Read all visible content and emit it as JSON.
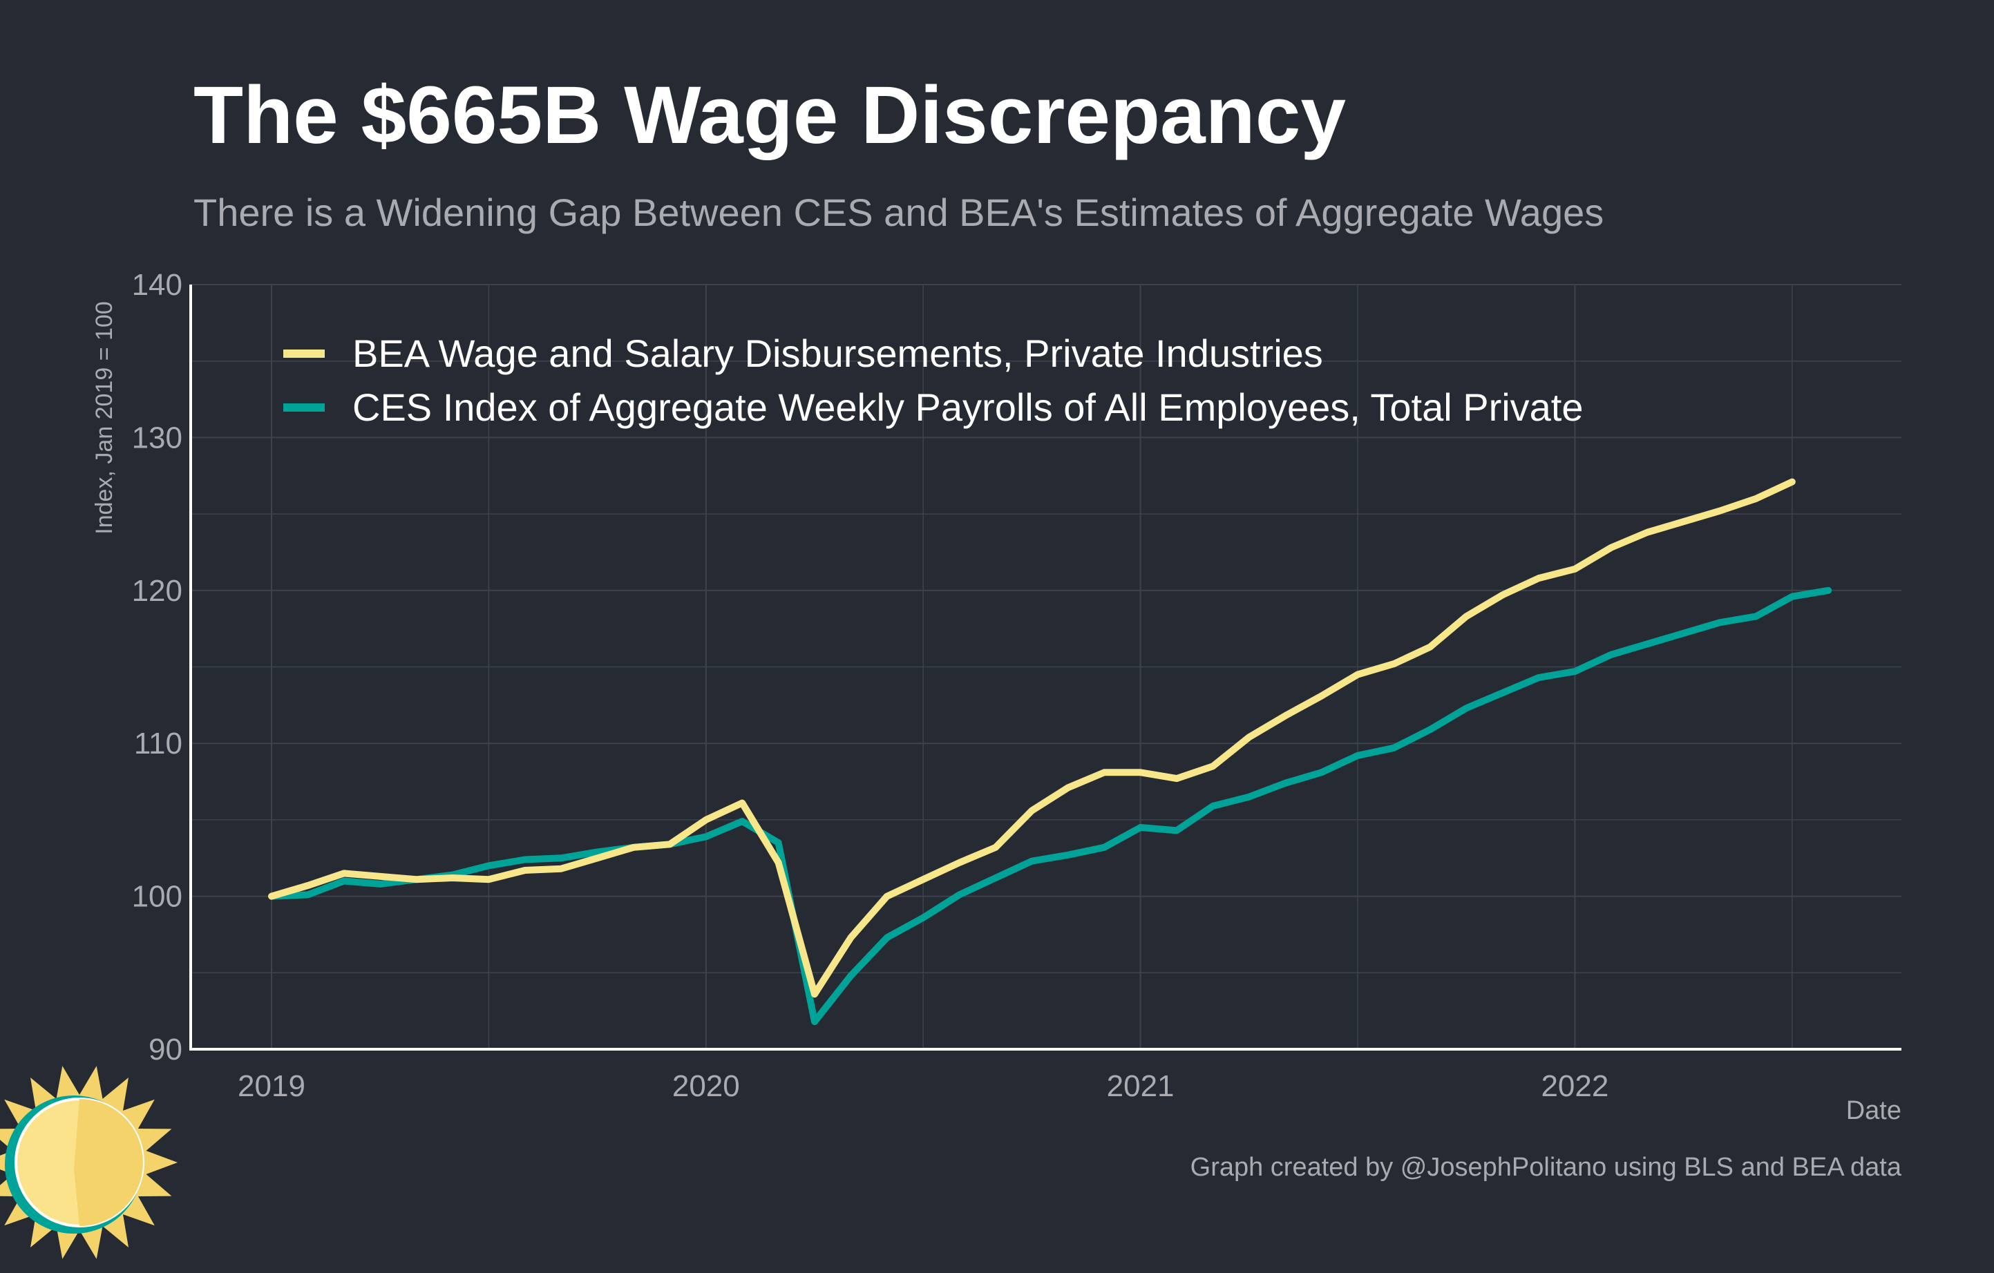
{
  "colors": {
    "background": "#252a33",
    "grid": "#3d424b",
    "axis": "#ffffff",
    "title": "#ffffff",
    "subtitle": "#a9abb0",
    "tick_label": "#a9abb0",
    "bea": "#f7e68a",
    "ces": "#00a398",
    "sun_body": "#fbe38c",
    "sun_shadow": "#f3d36a",
    "sun_ring": "#00a398"
  },
  "branding": {
    "logo_icon": "sun-icon"
  },
  "chart_data": {
    "type": "line",
    "title": "The $665B Wage Discrepancy",
    "subtitle": "There is a Widening Gap Between CES and BEA's Estimates of Aggregate Wages",
    "xlabel": "Date",
    "ylabel": "Index, Jan 2019 = 100",
    "caption": "Graph created by @JosephPolitano using BLS and BEA data",
    "x_tick_labels": [
      "2019",
      "2020",
      "2021",
      "2022"
    ],
    "y_ticks": [
      90,
      100,
      110,
      120,
      130,
      140
    ],
    "ylim": [
      90,
      140
    ],
    "grid": true,
    "legend_position": "top-left",
    "series": [
      {
        "name": "BEA Wage and Salary Disbursements, Private Industries",
        "color": "#f7e68a",
        "x": [
          "2019-01",
          "2019-02",
          "2019-03",
          "2019-04",
          "2019-05",
          "2019-06",
          "2019-07",
          "2019-08",
          "2019-09",
          "2019-10",
          "2019-11",
          "2019-12",
          "2020-01",
          "2020-02",
          "2020-03",
          "2020-04",
          "2020-05",
          "2020-06",
          "2020-07",
          "2020-08",
          "2020-09",
          "2020-10",
          "2020-11",
          "2020-12",
          "2021-01",
          "2021-02",
          "2021-03",
          "2021-04",
          "2021-05",
          "2021-06",
          "2021-07",
          "2021-08",
          "2021-09",
          "2021-10",
          "2021-11",
          "2021-12",
          "2022-01",
          "2022-02",
          "2022-03",
          "2022-04",
          "2022-05",
          "2022-06",
          "2022-07"
        ],
        "values": [
          100.0,
          100.7,
          101.5,
          101.3,
          101.1,
          101.2,
          101.1,
          101.7,
          101.8,
          102.5,
          103.2,
          103.4,
          105.0,
          106.1,
          102.2,
          93.6,
          97.3,
          100.0,
          101.1,
          102.2,
          103.2,
          105.6,
          107.1,
          108.1,
          108.1,
          107.7,
          108.5,
          110.4,
          111.8,
          113.1,
          114.5,
          115.2,
          116.3,
          118.3,
          119.7,
          120.8,
          121.4,
          122.8,
          123.8,
          124.5,
          125.2,
          126.0,
          127.1
        ]
      },
      {
        "name": "CES Index of Aggregate Weekly Payrolls of All Employees, Total Private",
        "color": "#00a398",
        "x": [
          "2019-01",
          "2019-02",
          "2019-03",
          "2019-04",
          "2019-05",
          "2019-06",
          "2019-07",
          "2019-08",
          "2019-09",
          "2019-10",
          "2019-11",
          "2019-12",
          "2020-01",
          "2020-02",
          "2020-03",
          "2020-04",
          "2020-05",
          "2020-06",
          "2020-07",
          "2020-08",
          "2020-09",
          "2020-10",
          "2020-11",
          "2020-12",
          "2021-01",
          "2021-02",
          "2021-03",
          "2021-04",
          "2021-05",
          "2021-06",
          "2021-07",
          "2021-08",
          "2021-09",
          "2021-10",
          "2021-11",
          "2021-12",
          "2022-01",
          "2022-02",
          "2022-03",
          "2022-04",
          "2022-05",
          "2022-06",
          "2022-07",
          "2022-08"
        ],
        "values": [
          100.0,
          100.1,
          101.0,
          100.8,
          101.1,
          101.4,
          102.0,
          102.4,
          102.5,
          102.9,
          103.2,
          103.4,
          103.9,
          104.9,
          103.5,
          91.8,
          94.8,
          97.3,
          98.6,
          100.1,
          101.2,
          102.3,
          102.7,
          103.2,
          104.5,
          104.3,
          105.9,
          106.5,
          107.4,
          108.1,
          109.2,
          109.7,
          110.9,
          112.3,
          113.3,
          114.3,
          114.7,
          115.8,
          116.5,
          117.2,
          117.9,
          118.3,
          119.6,
          120.0
        ]
      }
    ]
  }
}
